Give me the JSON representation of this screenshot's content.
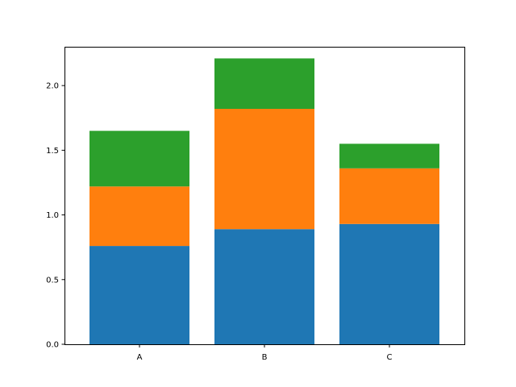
{
  "chart_data": {
    "type": "bar",
    "stacked": true,
    "categories": [
      "A",
      "B",
      "C"
    ],
    "series": [
      {
        "values": [
          0.76,
          0.89,
          0.93
        ],
        "color": "#1f77b4"
      },
      {
        "values": [
          0.46,
          0.93,
          0.43
        ],
        "color": "#ff7f0e"
      },
      {
        "values": [
          0.43,
          0.39,
          0.19
        ],
        "color": "#2ca02c"
      }
    ],
    "title": "",
    "xlabel": "",
    "ylabel": "",
    "ylim": [
      0,
      2.3
    ],
    "yticks": [
      "0.0",
      "0.5",
      "1.0",
      "1.5",
      "2.0"
    ],
    "grid": false,
    "legend": false
  }
}
